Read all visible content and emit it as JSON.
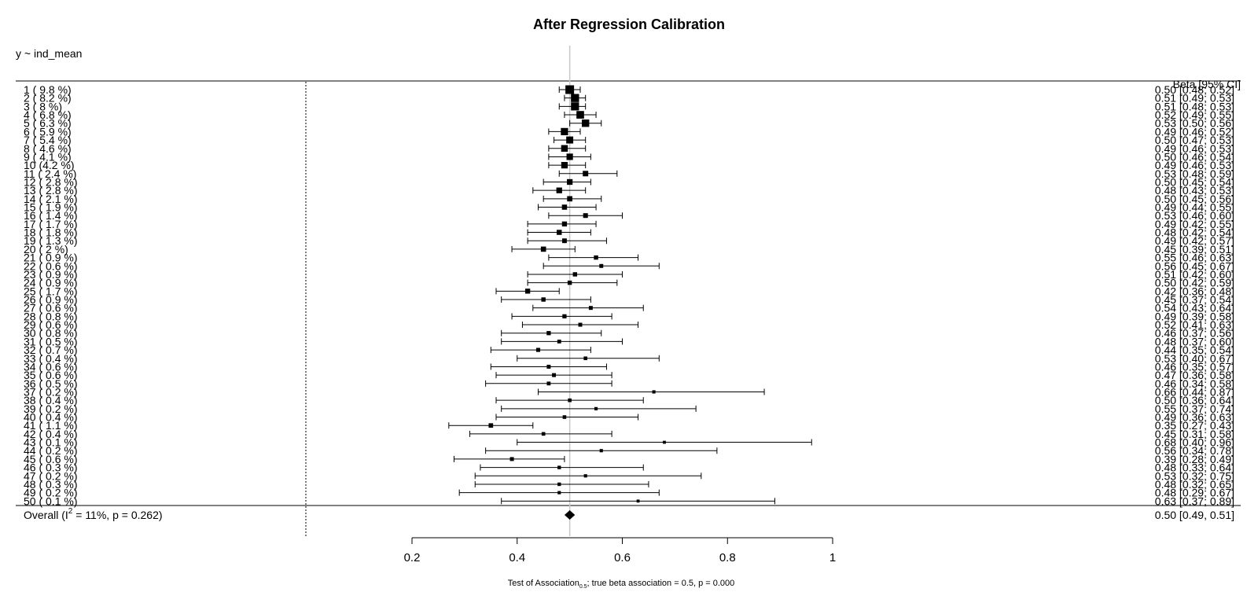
{
  "chart_data": {
    "type": "forest",
    "title": "After Regression Calibration",
    "model_label": "y ~ ind_mean",
    "column_header": "Beta [95% CI]",
    "xlim": [
      0.2,
      1.0
    ],
    "xticks": [
      "0.2",
      "0.4",
      "0.6",
      "0.8",
      "1"
    ],
    "reference_line": 0.5,
    "footnote_prefix": "Test of Association",
    "footnote_subscript": "0.5",
    "footnote_suffix": "; true beta association = 0.5, p = 0.000",
    "studies": [
      {
        "label": "1  ( 9.8 %)",
        "weight": 9.8,
        "beta": 0.5,
        "lo": 0.48,
        "hi": 0.52,
        "ci_text": "0.50 [0.48; 0.52]"
      },
      {
        "label": "2  ( 8.2 %)",
        "weight": 8.2,
        "beta": 0.51,
        "lo": 0.49,
        "hi": 0.53,
        "ci_text": "0.51 [0.49; 0.53]"
      },
      {
        "label": "3  ( 8 %)",
        "weight": 8.0,
        "beta": 0.51,
        "lo": 0.48,
        "hi": 0.53,
        "ci_text": "0.51 [0.48; 0.53]"
      },
      {
        "label": "4  ( 6.8 %)",
        "weight": 6.8,
        "beta": 0.52,
        "lo": 0.49,
        "hi": 0.55,
        "ci_text": "0.52 [0.49; 0.55]"
      },
      {
        "label": "5  ( 6.3 %)",
        "weight": 6.3,
        "beta": 0.53,
        "lo": 0.5,
        "hi": 0.56,
        "ci_text": "0.53 [0.50; 0.56]"
      },
      {
        "label": "6  ( 5.9 %)",
        "weight": 5.9,
        "beta": 0.49,
        "lo": 0.46,
        "hi": 0.52,
        "ci_text": "0.49 [0.46; 0.52]"
      },
      {
        "label": "7  ( 5.4 %)",
        "weight": 5.4,
        "beta": 0.5,
        "lo": 0.47,
        "hi": 0.53,
        "ci_text": "0.50 [0.47; 0.53]"
      },
      {
        "label": "8  ( 4.6 %)",
        "weight": 4.6,
        "beta": 0.49,
        "lo": 0.46,
        "hi": 0.53,
        "ci_text": "0.49 [0.46; 0.53]"
      },
      {
        "label": "9  ( 4.1 %)",
        "weight": 4.1,
        "beta": 0.5,
        "lo": 0.46,
        "hi": 0.54,
        "ci_text": "0.50 [0.46; 0.54]"
      },
      {
        "label": "10  (4.2 %)",
        "weight": 4.2,
        "beta": 0.49,
        "lo": 0.46,
        "hi": 0.53,
        "ci_text": "0.49 [0.46; 0.53]"
      },
      {
        "label": "11  ( 2.4 %)",
        "weight": 2.4,
        "beta": 0.53,
        "lo": 0.48,
        "hi": 0.59,
        "ci_text": "0.53 [0.48; 0.59]"
      },
      {
        "label": "12  ( 2.8 %)",
        "weight": 2.8,
        "beta": 0.5,
        "lo": 0.45,
        "hi": 0.54,
        "ci_text": "0.50 [0.45; 0.54]"
      },
      {
        "label": "13  ( 2.8 %)",
        "weight": 2.8,
        "beta": 0.48,
        "lo": 0.43,
        "hi": 0.53,
        "ci_text": "0.48 [0.43; 0.53]"
      },
      {
        "label": "14  ( 2.1 %)",
        "weight": 2.1,
        "beta": 0.5,
        "lo": 0.45,
        "hi": 0.56,
        "ci_text": "0.50 [0.45; 0.56]"
      },
      {
        "label": "15  ( 1.9 %)",
        "weight": 1.9,
        "beta": 0.49,
        "lo": 0.44,
        "hi": 0.55,
        "ci_text": "0.49 [0.44; 0.55]"
      },
      {
        "label": "16  ( 1.4 %)",
        "weight": 1.4,
        "beta": 0.53,
        "lo": 0.46,
        "hi": 0.6,
        "ci_text": "0.53 [0.46; 0.60]"
      },
      {
        "label": "17  ( 1.7 %)",
        "weight": 1.7,
        "beta": 0.49,
        "lo": 0.42,
        "hi": 0.55,
        "ci_text": "0.49 [0.42; 0.55]"
      },
      {
        "label": "18  ( 1.8 %)",
        "weight": 1.8,
        "beta": 0.48,
        "lo": 0.42,
        "hi": 0.54,
        "ci_text": "0.48 [0.42; 0.54]"
      },
      {
        "label": "19  ( 1.3 %)",
        "weight": 1.3,
        "beta": 0.49,
        "lo": 0.42,
        "hi": 0.57,
        "ci_text": "0.49 [0.42; 0.57]"
      },
      {
        "label": "20  ( 2 %)",
        "weight": 2.0,
        "beta": 0.45,
        "lo": 0.39,
        "hi": 0.51,
        "ci_text": "0.45 [0.39; 0.51]"
      },
      {
        "label": "21  ( 0.9 %)",
        "weight": 0.9,
        "beta": 0.55,
        "lo": 0.46,
        "hi": 0.63,
        "ci_text": "0.55 [0.46; 0.63]"
      },
      {
        "label": "22  ( 0.6 %)",
        "weight": 0.6,
        "beta": 0.56,
        "lo": 0.45,
        "hi": 0.67,
        "ci_text": "0.56 [0.45; 0.67]"
      },
      {
        "label": "23  ( 0.9 %)",
        "weight": 0.9,
        "beta": 0.51,
        "lo": 0.42,
        "hi": 0.6,
        "ci_text": "0.51 [0.42; 0.60]"
      },
      {
        "label": "24  ( 0.9 %)",
        "weight": 0.9,
        "beta": 0.5,
        "lo": 0.42,
        "hi": 0.59,
        "ci_text": "0.50 [0.42; 0.59]"
      },
      {
        "label": "25  ( 1.7 %)",
        "weight": 1.7,
        "beta": 0.42,
        "lo": 0.36,
        "hi": 0.48,
        "ci_text": "0.42 [0.36; 0.48]"
      },
      {
        "label": "26  ( 0.9 %)",
        "weight": 0.9,
        "beta": 0.45,
        "lo": 0.37,
        "hi": 0.54,
        "ci_text": "0.45 [0.37; 0.54]"
      },
      {
        "label": "27  ( 0.6 %)",
        "weight": 0.6,
        "beta": 0.54,
        "lo": 0.43,
        "hi": 0.64,
        "ci_text": "0.54 [0.43; 0.64]"
      },
      {
        "label": "28  ( 0.8 %)",
        "weight": 0.8,
        "beta": 0.49,
        "lo": 0.39,
        "hi": 0.58,
        "ci_text": "0.49 [0.39; 0.58]"
      },
      {
        "label": "29  ( 0.6 %)",
        "weight": 0.6,
        "beta": 0.52,
        "lo": 0.41,
        "hi": 0.63,
        "ci_text": "0.52 [0.41; 0.63]"
      },
      {
        "label": "30  ( 0.8 %)",
        "weight": 0.8,
        "beta": 0.46,
        "lo": 0.37,
        "hi": 0.56,
        "ci_text": "0.46 [0.37; 0.56]"
      },
      {
        "label": "31  ( 0.5 %)",
        "weight": 0.5,
        "beta": 0.48,
        "lo": 0.37,
        "hi": 0.6,
        "ci_text": "0.48 [0.37; 0.60]"
      },
      {
        "label": "32  ( 0.7 %)",
        "weight": 0.7,
        "beta": 0.44,
        "lo": 0.35,
        "hi": 0.54,
        "ci_text": "0.44 [0.35; 0.54]"
      },
      {
        "label": "33  ( 0.4 %)",
        "weight": 0.4,
        "beta": 0.53,
        "lo": 0.4,
        "hi": 0.67,
        "ci_text": "0.53 [0.40; 0.67]"
      },
      {
        "label": "34  ( 0.6 %)",
        "weight": 0.6,
        "beta": 0.46,
        "lo": 0.35,
        "hi": 0.57,
        "ci_text": "0.46 [0.35; 0.57]"
      },
      {
        "label": "35  ( 0.6 %)",
        "weight": 0.6,
        "beta": 0.47,
        "lo": 0.36,
        "hi": 0.58,
        "ci_text": "0.47 [0.36; 0.58]"
      },
      {
        "label": "36  ( 0.5 %)",
        "weight": 0.5,
        "beta": 0.46,
        "lo": 0.34,
        "hi": 0.58,
        "ci_text": "0.46 [0.34; 0.58]"
      },
      {
        "label": "37  ( 0.2 %)",
        "weight": 0.2,
        "beta": 0.66,
        "lo": 0.44,
        "hi": 0.87,
        "ci_text": "0.66 [0.44; 0.87]"
      },
      {
        "label": "38  ( 0.4 %)",
        "weight": 0.4,
        "beta": 0.5,
        "lo": 0.36,
        "hi": 0.64,
        "ci_text": "0.50 [0.36; 0.64]"
      },
      {
        "label": "39  ( 0.2 %)",
        "weight": 0.2,
        "beta": 0.55,
        "lo": 0.37,
        "hi": 0.74,
        "ci_text": "0.55 [0.37; 0.74]"
      },
      {
        "label": "40  ( 0.4 %)",
        "weight": 0.4,
        "beta": 0.49,
        "lo": 0.36,
        "hi": 0.63,
        "ci_text": "0.49 [0.36; 0.63]"
      },
      {
        "label": "41  ( 1.1 %)",
        "weight": 1.1,
        "beta": 0.35,
        "lo": 0.27,
        "hi": 0.43,
        "ci_text": "0.35 [0.27; 0.43]"
      },
      {
        "label": "42  ( 0.4 %)",
        "weight": 0.4,
        "beta": 0.45,
        "lo": 0.31,
        "hi": 0.58,
        "ci_text": "0.45 [0.31; 0.58]"
      },
      {
        "label": "43  ( 0.1 %)",
        "weight": 0.1,
        "beta": 0.68,
        "lo": 0.4,
        "hi": 0.96,
        "ci_text": "0.68 [0.40; 0.96]"
      },
      {
        "label": "44  ( 0.2 %)",
        "weight": 0.2,
        "beta": 0.56,
        "lo": 0.34,
        "hi": 0.78,
        "ci_text": "0.56 [0.34; 0.78]"
      },
      {
        "label": "45  ( 0.6 %)",
        "weight": 0.6,
        "beta": 0.39,
        "lo": 0.28,
        "hi": 0.49,
        "ci_text": "0.39 [0.28; 0.49]"
      },
      {
        "label": "46  ( 0.3 %)",
        "weight": 0.3,
        "beta": 0.48,
        "lo": 0.33,
        "hi": 0.64,
        "ci_text": "0.48 [0.33; 0.64]"
      },
      {
        "label": "47  ( 0.2 %)",
        "weight": 0.2,
        "beta": 0.53,
        "lo": 0.32,
        "hi": 0.75,
        "ci_text": "0.53 [0.32; 0.75]"
      },
      {
        "label": "48  ( 0.3 %)",
        "weight": 0.3,
        "beta": 0.48,
        "lo": 0.32,
        "hi": 0.65,
        "ci_text": "0.48 [0.32; 0.65]"
      },
      {
        "label": "49  ( 0.2 %)",
        "weight": 0.2,
        "beta": 0.48,
        "lo": 0.29,
        "hi": 0.67,
        "ci_text": "0.48 [0.29; 0.67]"
      },
      {
        "label": "50  ( 0.1 %)",
        "weight": 0.1,
        "beta": 0.63,
        "lo": 0.37,
        "hi": 0.89,
        "ci_text": "0.63 [0.37; 0.89]"
      }
    ],
    "overall": {
      "label_prefix": "Overall (I",
      "label_sup": "2",
      "label_suffix": " = 11%, p = 0.262)",
      "i2": "11%",
      "p": "0.262",
      "beta": 0.5,
      "lo": 0.49,
      "hi": 0.51,
      "ci_text": "0.50 [0.49, 0.51]"
    }
  }
}
